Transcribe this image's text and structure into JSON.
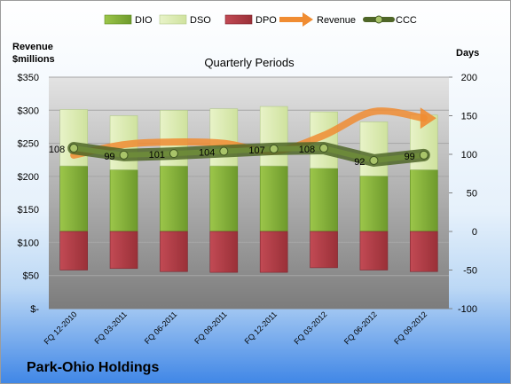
{
  "company": "Park-Ohio Holdings",
  "chart_data": {
    "type": "bar",
    "title": "Quarterly Periods",
    "left_axis_title": [
      "Revenue",
      "$millions"
    ],
    "right_axis_title": "Days",
    "left_axis": {
      "min": 0,
      "max": 350,
      "step": 50,
      "tick_labels": [
        "$-",
        "$50",
        "$100",
        "$150",
        "$200",
        "$250",
        "$300",
        "$350"
      ]
    },
    "right_axis": {
      "min": -100,
      "max": 200,
      "step": 50,
      "tick_labels": [
        "-100",
        "-50",
        "0",
        "50",
        "100",
        "150",
        "200"
      ]
    },
    "categories": [
      "FQ 12-2010",
      "FQ 03-2011",
      "FQ 06-2011",
      "FQ 09-2011",
      "FQ 12-2011",
      "FQ 03-2012",
      "FQ 06-2012",
      "FQ 09-2012"
    ],
    "legend": [
      "DIO",
      "DSO",
      "DPO",
      "Revenue",
      "CCC"
    ],
    "legend_position": "top",
    "series": [
      {
        "name": "DIO",
        "axis": "right",
        "color": "#8CB43C",
        "values": [
          85,
          80,
          85,
          85,
          85,
          82,
          72,
          80
        ]
      },
      {
        "name": "DSO",
        "axis": "right",
        "color": "#DCEBB4",
        "values": [
          73,
          70,
          72,
          74,
          77,
          73,
          70,
          71
        ]
      },
      {
        "name": "DPO",
        "axis": "right",
        "color": "#B4404A",
        "values": [
          -50,
          -48,
          -52,
          -53,
          -53,
          -47,
          -50,
          -52
        ]
      },
      {
        "name": "Revenue",
        "axis": "left",
        "color": "#F08C32",
        "values": [
          232,
          248,
          252,
          250,
          238,
          262,
          298,
          288
        ]
      },
      {
        "name": "CCC",
        "axis": "right",
        "color": "#556B2F",
        "values": [
          108,
          99,
          101,
          104,
          107,
          108,
          92,
          99
        ]
      }
    ],
    "ccc_labels": [
      "108",
      "99",
      "101",
      "104",
      "107",
      "108",
      "92",
      "99"
    ]
  }
}
